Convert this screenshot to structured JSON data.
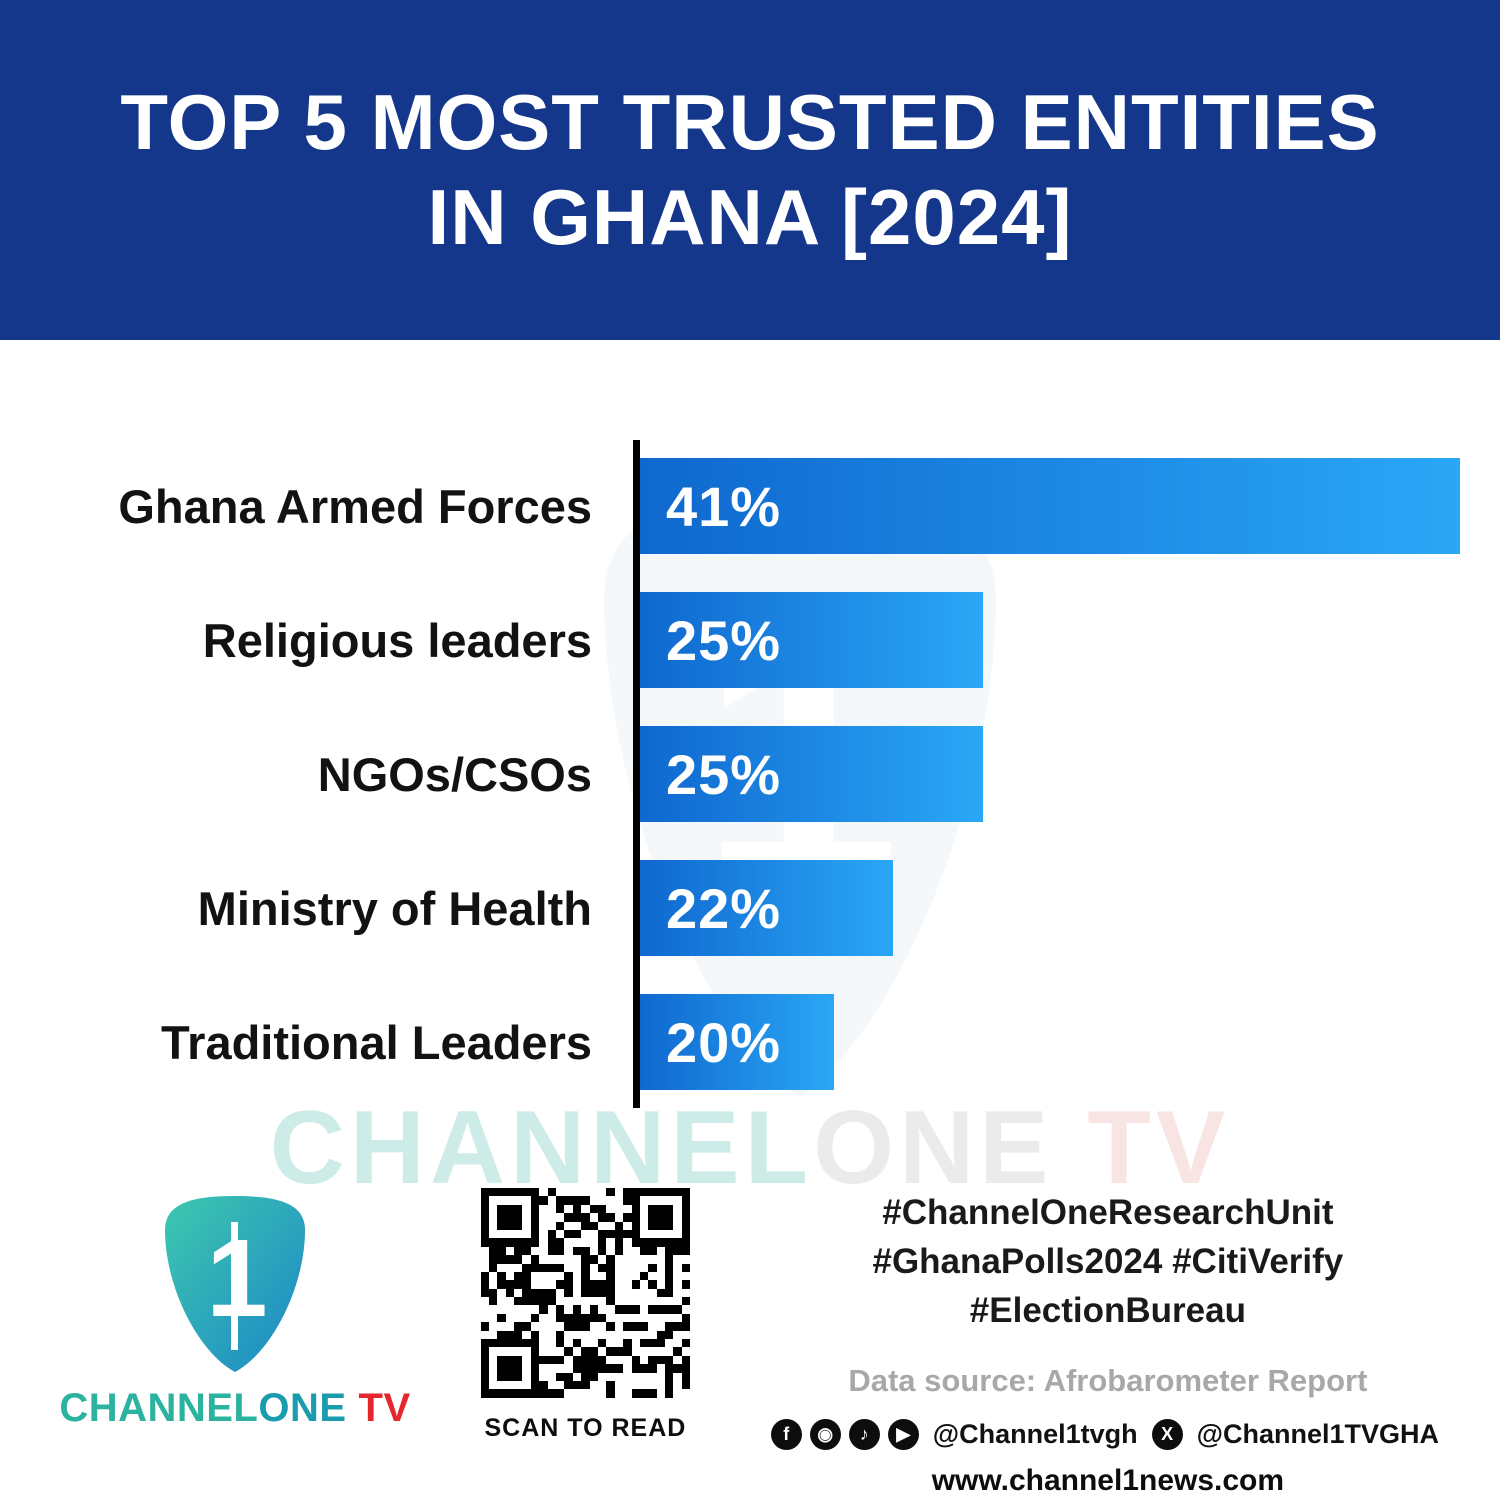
{
  "header": {
    "title_line1": "TOP 5 MOST TRUSTED ENTITIES",
    "title_line2": "IN GHANA [2024]"
  },
  "chart_data": {
    "type": "bar",
    "orientation": "horizontal",
    "title": "TOP 5 MOST TRUSTED ENTITIES IN GHANA [2024]",
    "categories": [
      "Ghana Armed Forces",
      "Religious leaders",
      "NGOs/CSOs",
      "Ministry of Health",
      "Traditional Leaders"
    ],
    "values": [
      41,
      25,
      25,
      22,
      20
    ],
    "value_labels": [
      "41%",
      "25%",
      "25%",
      "22%",
      "20%"
    ],
    "xlabel": "",
    "ylabel": "",
    "xlim": [
      0,
      45
    ],
    "grid": false,
    "legend": false,
    "bar_color_start": "#0f68cf",
    "bar_color_end": "#2aa7f6",
    "axis_color": "#000000"
  },
  "watermark": {
    "part1": "CHANNEL",
    "part2": "ONE",
    "part3": " TV"
  },
  "footer": {
    "logo": {
      "numeral": "1",
      "brand_channel": "CHANNEL",
      "brand_one": "ONE",
      "brand_tv": "TV"
    },
    "qr_caption": "SCAN TO READ",
    "hashtags_line1": "#ChannelOneResearchUnit",
    "hashtags_line2": "#GhanaPolls2024 #CitiVerify",
    "hashtags_line3": "#ElectionBureau",
    "data_source": "Data source: Afrobarometer Report",
    "social": {
      "icons_left": [
        {
          "name": "facebook-icon",
          "glyph": "f"
        },
        {
          "name": "instagram-icon",
          "glyph": "◉"
        },
        {
          "name": "tiktok-icon",
          "glyph": "♪"
        },
        {
          "name": "youtube-icon",
          "glyph": "▶"
        }
      ],
      "handle1": "@Channel1tvgh",
      "x_icon": {
        "name": "x-icon",
        "glyph": "X"
      },
      "handle2": "@Channel1TVGHA"
    },
    "website": "www.channel1news.com"
  },
  "colors": {
    "header_bg": "#14378b",
    "bar_gradient_start": "#0f68cf",
    "bar_gradient_end": "#2aa7f6",
    "brand_teal": "#2cb3a0",
    "brand_red": "#e5262c",
    "source_gray": "#a8a8a8",
    "text_black": "#121212"
  }
}
